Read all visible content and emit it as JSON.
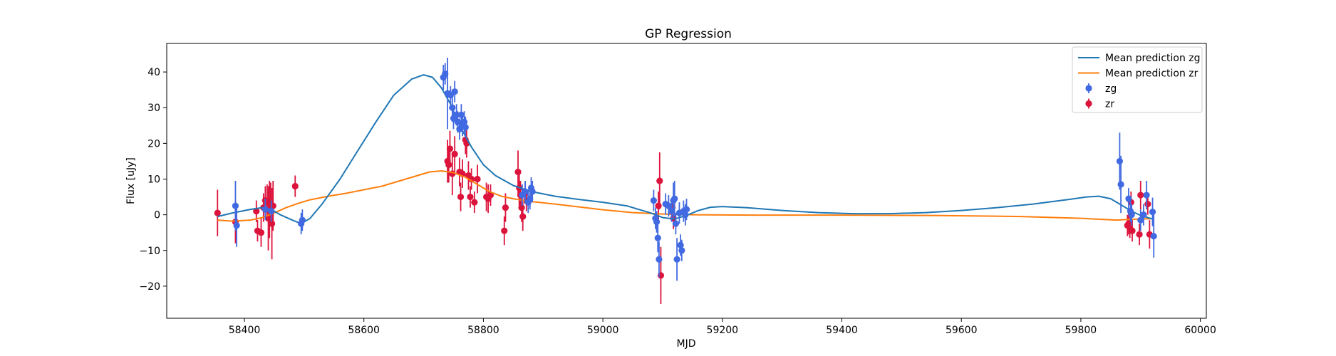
{
  "chart_data": {
    "type": "scatter",
    "title": "GP Regression",
    "xlabel": "MJD",
    "ylabel": "Flux [uJy]",
    "xlim": [
      58270,
      60010
    ],
    "ylim": [
      -29,
      48
    ],
    "xticks": [
      58400,
      58600,
      58800,
      59000,
      59200,
      59400,
      59600,
      59800,
      60000
    ],
    "yticks": [
      -20,
      -10,
      0,
      10,
      20,
      30,
      40
    ],
    "grid": false,
    "legend_position": "top-right",
    "legend": [
      "Mean prediction zg",
      "Mean prediction zr",
      "zg",
      "zr"
    ],
    "colors": {
      "mean_zg": "#1f77b4",
      "mean_zr": "#ff7f0e",
      "zg": "#4169e1",
      "zr": "#dc143c"
    },
    "series": [
      {
        "name": "Mean prediction zg",
        "kind": "line",
        "color_key": "mean_zg",
        "points": [
          [
            58355,
            -0.5
          ],
          [
            58380,
            0.5
          ],
          [
            58410,
            1.5
          ],
          [
            58430,
            2.0
          ],
          [
            58445,
            1.5
          ],
          [
            58460,
            0.0
          ],
          [
            58480,
            -1.5
          ],
          [
            58495,
            -2.5
          ],
          [
            58510,
            -1.0
          ],
          [
            58530,
            3.0
          ],
          [
            58560,
            10.0
          ],
          [
            58590,
            18.0
          ],
          [
            58620,
            26.0
          ],
          [
            58650,
            33.5
          ],
          [
            58680,
            38.0
          ],
          [
            58700,
            39.2
          ],
          [
            58715,
            38.5
          ],
          [
            58730,
            35.5
          ],
          [
            58745,
            31.0
          ],
          [
            58760,
            25.0
          ],
          [
            58780,
            19.0
          ],
          [
            58800,
            14.0
          ],
          [
            58820,
            11.0
          ],
          [
            58850,
            8.2
          ],
          [
            58880,
            6.5
          ],
          [
            58920,
            5.2
          ],
          [
            58960,
            4.3
          ],
          [
            59000,
            3.5
          ],
          [
            59040,
            2.5
          ],
          [
            59080,
            0.5
          ],
          [
            59100,
            -0.8
          ],
          [
            59120,
            -1.2
          ],
          [
            59140,
            -0.2
          ],
          [
            59160,
            1.2
          ],
          [
            59180,
            2.1
          ],
          [
            59200,
            2.3
          ],
          [
            59240,
            2.0
          ],
          [
            59300,
            1.2
          ],
          [
            59360,
            0.6
          ],
          [
            59420,
            0.3
          ],
          [
            59480,
            0.3
          ],
          [
            59540,
            0.6
          ],
          [
            59600,
            1.2
          ],
          [
            59660,
            2.0
          ],
          [
            59720,
            3.0
          ],
          [
            59780,
            4.3
          ],
          [
            59810,
            5.0
          ],
          [
            59830,
            5.2
          ],
          [
            59850,
            4.5
          ],
          [
            59870,
            2.5
          ],
          [
            59885,
            1.0
          ],
          [
            59900,
            -0.2
          ],
          [
            59920,
            -1.2
          ]
        ]
      },
      {
        "name": "Mean prediction zr",
        "kind": "line",
        "color_key": "mean_zr",
        "points": [
          [
            58355,
            -1.5
          ],
          [
            58380,
            -1.8
          ],
          [
            58410,
            -1.5
          ],
          [
            58430,
            -0.8
          ],
          [
            58450,
            0.5
          ],
          [
            58470,
            2.0
          ],
          [
            58490,
            3.2
          ],
          [
            58510,
            4.2
          ],
          [
            58540,
            5.2
          ],
          [
            58570,
            6.0
          ],
          [
            58600,
            7.0
          ],
          [
            58630,
            8.0
          ],
          [
            58660,
            9.5
          ],
          [
            58690,
            11.0
          ],
          [
            58710,
            12.0
          ],
          [
            58730,
            12.3
          ],
          [
            58750,
            11.8
          ],
          [
            58770,
            10.5
          ],
          [
            58790,
            8.5
          ],
          [
            58810,
            6.5
          ],
          [
            58830,
            5.2
          ],
          [
            58850,
            4.5
          ],
          [
            58880,
            3.7
          ],
          [
            58920,
            3.0
          ],
          [
            58960,
            2.2
          ],
          [
            59000,
            1.4
          ],
          [
            59050,
            0.6
          ],
          [
            59100,
            0.2
          ],
          [
            59150,
            0.0
          ],
          [
            59250,
            -0.1
          ],
          [
            59400,
            -0.1
          ],
          [
            59550,
            -0.2
          ],
          [
            59700,
            -0.5
          ],
          [
            59800,
            -1.0
          ],
          [
            59860,
            -1.5
          ],
          [
            59880,
            -1.3
          ],
          [
            59900,
            -1.2
          ],
          [
            59920,
            -1.1
          ]
        ]
      },
      {
        "name": "zg",
        "kind": "errorbar",
        "color_key": "zg",
        "points": [
          [
            58385,
            2.5,
            7
          ],
          [
            58387,
            -3,
            6
          ],
          [
            58435,
            1.5,
            3
          ],
          [
            58445,
            1,
            3
          ],
          [
            58495,
            -2.5,
            3
          ],
          [
            58497,
            -1.5,
            3
          ],
          [
            58733,
            38.5,
            3.5
          ],
          [
            58736,
            39.5,
            3
          ],
          [
            58740,
            34,
            10
          ],
          [
            58745,
            33.5,
            2.5
          ],
          [
            58748,
            30,
            4
          ],
          [
            58750,
            27,
            3
          ],
          [
            58752,
            34.5,
            3
          ],
          [
            58755,
            28,
            3
          ],
          [
            58757,
            26,
            3
          ],
          [
            58760,
            24,
            3
          ],
          [
            58763,
            28,
            3
          ],
          [
            58765,
            25,
            3
          ],
          [
            58768,
            26,
            3
          ],
          [
            58770,
            24.5,
            3
          ],
          [
            58865,
            5.5,
            3
          ],
          [
            58870,
            6.5,
            3
          ],
          [
            58875,
            3.5,
            3
          ],
          [
            58878,
            4.5,
            3
          ],
          [
            58880,
            7.5,
            3
          ],
          [
            58882,
            6.5,
            3
          ],
          [
            59085,
            4,
            3
          ],
          [
            59088,
            -1,
            3
          ],
          [
            59090,
            -2,
            3
          ],
          [
            59092,
            -6.5,
            4
          ],
          [
            59094,
            -12.5,
            5
          ],
          [
            59105,
            3,
            3
          ],
          [
            59110,
            2.5,
            3
          ],
          [
            59115,
            1,
            3
          ],
          [
            59118,
            4,
            5
          ],
          [
            59120,
            4.5,
            5
          ],
          [
            59122,
            -2.5,
            3
          ],
          [
            59124,
            -12.5,
            6
          ],
          [
            59128,
            0.5,
            3
          ],
          [
            59130,
            -8.5,
            3
          ],
          [
            59132,
            -10,
            3
          ],
          [
            59135,
            1,
            3
          ],
          [
            59138,
            0,
            3
          ],
          [
            59140,
            1.5,
            3
          ],
          [
            59865,
            15,
            8
          ],
          [
            59867,
            8.5,
            8
          ],
          [
            59880,
            4.5,
            3
          ],
          [
            59883,
            1,
            3
          ],
          [
            59885,
            0,
            3
          ],
          [
            59900,
            -1.5,
            3
          ],
          [
            59905,
            0,
            3
          ],
          [
            59910,
            5.5,
            4
          ],
          [
            59920,
            0.8,
            4
          ],
          [
            59922,
            -6,
            6
          ]
        ]
      },
      {
        "name": "zr",
        "kind": "errorbar",
        "color_key": "zr",
        "points": [
          [
            58355,
            0.5,
            6.5
          ],
          [
            58385,
            -2,
            6
          ],
          [
            58420,
            1,
            3
          ],
          [
            58422,
            -4.5,
            3
          ],
          [
            58428,
            -5,
            4
          ],
          [
            58432,
            2,
            4
          ],
          [
            58435,
            4,
            4
          ],
          [
            58438,
            3.5,
            5
          ],
          [
            58440,
            -1,
            9
          ],
          [
            58442,
            1.5,
            8
          ],
          [
            58444,
            3,
            6
          ],
          [
            58446,
            -2.5,
            10
          ],
          [
            58448,
            2.5,
            7
          ],
          [
            58485,
            8,
            3
          ],
          [
            58740,
            15,
            6
          ],
          [
            58742,
            14,
            5
          ],
          [
            58744,
            18.5,
            5
          ],
          [
            58748,
            11.5,
            6
          ],
          [
            58752,
            17,
            5
          ],
          [
            58760,
            12,
            4
          ],
          [
            58762,
            5,
            4
          ],
          [
            58765,
            11.5,
            4
          ],
          [
            58770,
            21,
            4
          ],
          [
            58772,
            20,
            4
          ],
          [
            58775,
            11,
            4
          ],
          [
            58778,
            5,
            3
          ],
          [
            58780,
            10,
            3
          ],
          [
            58785,
            3.5,
            3
          ],
          [
            58790,
            10,
            4
          ],
          [
            58805,
            5,
            4
          ],
          [
            58808,
            4.5,
            4
          ],
          [
            58812,
            5.5,
            3
          ],
          [
            58835,
            -4.5,
            4
          ],
          [
            58837,
            2,
            4
          ],
          [
            58858,
            12,
            6
          ],
          [
            58860,
            7.5,
            5
          ],
          [
            58862,
            5.5,
            4
          ],
          [
            58864,
            2,
            4
          ],
          [
            58866,
            -0.5,
            4
          ],
          [
            58870,
            6,
            3
          ],
          [
            58872,
            4,
            3
          ],
          [
            59093,
            2.5,
            4
          ],
          [
            59095,
            9.5,
            8
          ],
          [
            59097,
            -17,
            8
          ],
          [
            59116,
            2,
            3
          ],
          [
            59118,
            -1,
            3
          ],
          [
            59878,
            -3,
            3
          ],
          [
            59880,
            -2.5,
            3
          ],
          [
            59882,
            -3.5,
            3
          ],
          [
            59884,
            3.5,
            3
          ],
          [
            59886,
            -4.5,
            3
          ],
          [
            59898,
            -5.5,
            3
          ],
          [
            59900,
            5.5,
            4
          ],
          [
            59912,
            3,
            3
          ],
          [
            59915,
            -5.5,
            4
          ]
        ]
      }
    ]
  }
}
